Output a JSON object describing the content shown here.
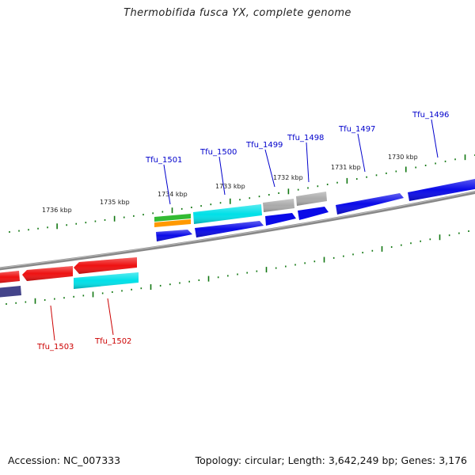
{
  "title": "Thermobifida fusca YX, complete genome",
  "footer": {
    "accession": "Accession: NC_007333",
    "summary": "Topology: circular; Length: 3,642,249 bp; Genes: 3,176"
  },
  "colors": {
    "forward_gene": "#0a0ae8",
    "reverse_gene": "#ee1111",
    "cyan_feature": "#00e0e8",
    "grey_feature": "#aaaaaa",
    "green_feature": "#33bb33",
    "orange_feature": "#ff9900",
    "navy_feature": "#44448a",
    "backbone": "#888888",
    "tick": "#117711",
    "forward_label": "#0000cc",
    "reverse_label": "#cc0000"
  },
  "scale_labels": [
    "1736 kbp",
    "1735 kbp",
    "1734 kbp",
    "1733 kbp",
    "1732 kbp",
    "1731 kbp",
    "1730 kbp"
  ],
  "forward_labels": [
    "Tfu_1501",
    "Tfu_1500",
    "Tfu_1499",
    "Tfu_1498",
    "Tfu_1497",
    "Tfu_1496"
  ],
  "reverse_labels": [
    "Tfu_1503",
    "Tfu_1502"
  ]
}
